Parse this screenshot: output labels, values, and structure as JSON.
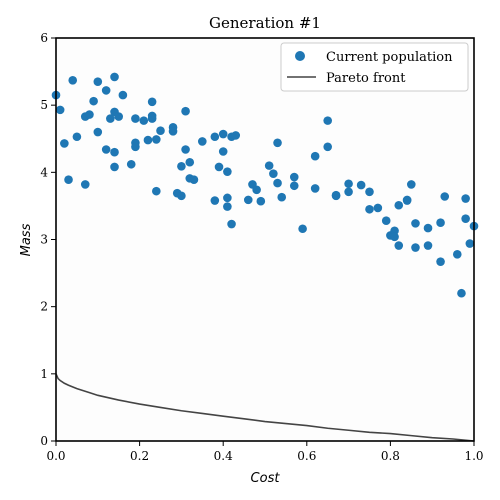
{
  "chart_data": {
    "type": "scatter",
    "title": "Generation #1",
    "xlabel": "Cost",
    "ylabel": "Mass",
    "xlim": [
      0,
      1
    ],
    "ylim": [
      0,
      6
    ],
    "xticks": [
      "0.0",
      "0.2",
      "0.4",
      "0.6",
      "0.8",
      "1.0"
    ],
    "yticks": [
      "0",
      "1",
      "2",
      "3",
      "4",
      "5",
      "6"
    ],
    "grid": false,
    "legend_position": "top-right",
    "series": [
      {
        "name": "Current population",
        "kind": "scatter",
        "color": "#1f77b4",
        "points": [
          [
            0.0,
            5.15
          ],
          [
            0.01,
            4.93
          ],
          [
            0.02,
            4.43
          ],
          [
            0.03,
            3.89
          ],
          [
            0.04,
            5.37
          ],
          [
            0.05,
            4.53
          ],
          [
            0.07,
            3.82
          ],
          [
            0.07,
            4.83
          ],
          [
            0.08,
            4.86
          ],
          [
            0.09,
            5.06
          ],
          [
            0.1,
            4.6
          ],
          [
            0.1,
            5.35
          ],
          [
            0.12,
            4.34
          ],
          [
            0.12,
            5.22
          ],
          [
            0.13,
            4.8
          ],
          [
            0.14,
            4.3
          ],
          [
            0.14,
            5.42
          ],
          [
            0.14,
            4.08
          ],
          [
            0.14,
            4.9
          ],
          [
            0.15,
            4.83
          ],
          [
            0.16,
            5.15
          ],
          [
            0.18,
            4.12
          ],
          [
            0.19,
            4.44
          ],
          [
            0.19,
            4.38
          ],
          [
            0.19,
            4.8
          ],
          [
            0.21,
            4.77
          ],
          [
            0.22,
            4.48
          ],
          [
            0.23,
            5.05
          ],
          [
            0.23,
            4.84
          ],
          [
            0.23,
            4.8
          ],
          [
            0.24,
            3.72
          ],
          [
            0.24,
            4.49
          ],
          [
            0.25,
            4.62
          ],
          [
            0.28,
            4.67
          ],
          [
            0.28,
            4.61
          ],
          [
            0.29,
            3.69
          ],
          [
            0.3,
            3.65
          ],
          [
            0.3,
            4.09
          ],
          [
            0.31,
            4.34
          ],
          [
            0.31,
            4.91
          ],
          [
            0.32,
            3.91
          ],
          [
            0.32,
            4.15
          ],
          [
            0.33,
            3.89
          ],
          [
            0.35,
            4.46
          ],
          [
            0.38,
            4.53
          ],
          [
            0.38,
            3.58
          ],
          [
            0.39,
            4.08
          ],
          [
            0.4,
            4.31
          ],
          [
            0.4,
            4.57
          ],
          [
            0.41,
            4.01
          ],
          [
            0.41,
            3.62
          ],
          [
            0.41,
            3.49
          ],
          [
            0.42,
            4.53
          ],
          [
            0.42,
            3.23
          ],
          [
            0.43,
            4.55
          ],
          [
            0.46,
            3.59
          ],
          [
            0.47,
            3.82
          ],
          [
            0.48,
            3.74
          ],
          [
            0.49,
            3.57
          ],
          [
            0.51,
            4.1
          ],
          [
            0.52,
            3.98
          ],
          [
            0.53,
            4.44
          ],
          [
            0.53,
            3.84
          ],
          [
            0.54,
            3.63
          ],
          [
            0.57,
            3.93
          ],
          [
            0.57,
            3.8
          ],
          [
            0.59,
            3.16
          ],
          [
            0.62,
            3.76
          ],
          [
            0.62,
            4.24
          ],
          [
            0.65,
            4.77
          ],
          [
            0.65,
            4.38
          ],
          [
            0.67,
            3.66
          ],
          [
            0.67,
            3.65
          ],
          [
            0.7,
            3.83
          ],
          [
            0.7,
            3.71
          ],
          [
            0.73,
            3.81
          ],
          [
            0.75,
            3.45
          ],
          [
            0.75,
            3.71
          ],
          [
            0.77,
            3.47
          ],
          [
            0.79,
            3.28
          ],
          [
            0.8,
            3.06
          ],
          [
            0.81,
            3.13
          ],
          [
            0.81,
            3.04
          ],
          [
            0.82,
            2.91
          ],
          [
            0.82,
            3.51
          ],
          [
            0.84,
            3.59
          ],
          [
            0.84,
            3.58
          ],
          [
            0.85,
            3.82
          ],
          [
            0.86,
            2.88
          ],
          [
            0.86,
            3.24
          ],
          [
            0.89,
            3.17
          ],
          [
            0.89,
            2.91
          ],
          [
            0.92,
            3.25
          ],
          [
            0.92,
            2.67
          ],
          [
            0.93,
            3.64
          ],
          [
            0.96,
            2.78
          ],
          [
            0.97,
            2.2
          ],
          [
            0.98,
            3.61
          ],
          [
            0.98,
            3.31
          ],
          [
            0.99,
            2.94
          ],
          [
            1.0,
            3.2
          ]
        ]
      },
      {
        "name": "Pareto front",
        "kind": "line",
        "color": "#444444",
        "x": [
          0,
          0.005,
          0.01,
          0.02,
          0.03,
          0.05,
          0.08,
          0.1,
          0.15,
          0.2,
          0.25,
          0.3,
          0.35,
          0.4,
          0.45,
          0.5,
          0.55,
          0.6,
          0.65,
          0.7,
          0.75,
          0.8,
          0.85,
          0.9,
          0.95,
          1.0
        ],
        "y": [
          1.0,
          0.93,
          0.9,
          0.86,
          0.83,
          0.78,
          0.72,
          0.68,
          0.61,
          0.55,
          0.5,
          0.45,
          0.41,
          0.37,
          0.33,
          0.29,
          0.26,
          0.23,
          0.19,
          0.16,
          0.13,
          0.11,
          0.08,
          0.05,
          0.03,
          0.0
        ]
      }
    ]
  }
}
